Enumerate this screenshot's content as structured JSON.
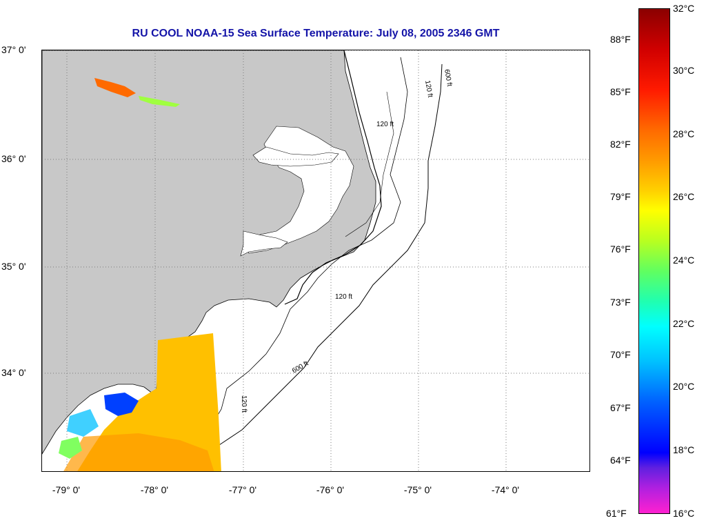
{
  "title": "RU COOL  NOAA-15  Sea Surface Temperature:  July 08, 2005 2346 GMT",
  "latitude_labels": [
    "37° 0'",
    "36° 0'",
    "35° 0'",
    "34° 0'"
  ],
  "longitude_labels": [
    "-79° 0'",
    "-78° 0'",
    "-77° 0'",
    "-76° 0'",
    "-75° 0'",
    "-74° 0'"
  ],
  "contour_labels": [
    "120 ft",
    "600 ft"
  ],
  "colorbar": {
    "fahrenheit": [
      "88°F",
      "85°F",
      "82°F",
      "79°F",
      "76°F",
      "73°F",
      "70°F",
      "67°F",
      "64°F",
      "61°F"
    ],
    "celsius": [
      "32°C",
      "30°C",
      "28°C",
      "26°C",
      "24°C",
      "22°C",
      "20°C",
      "18°C",
      "16°C"
    ]
  },
  "colors": {
    "land": "#c8c8c8",
    "ocean": "#ffffff",
    "title": "#1414a8",
    "warm_water": "#ffc000",
    "cool_water": "#0040ff"
  }
}
